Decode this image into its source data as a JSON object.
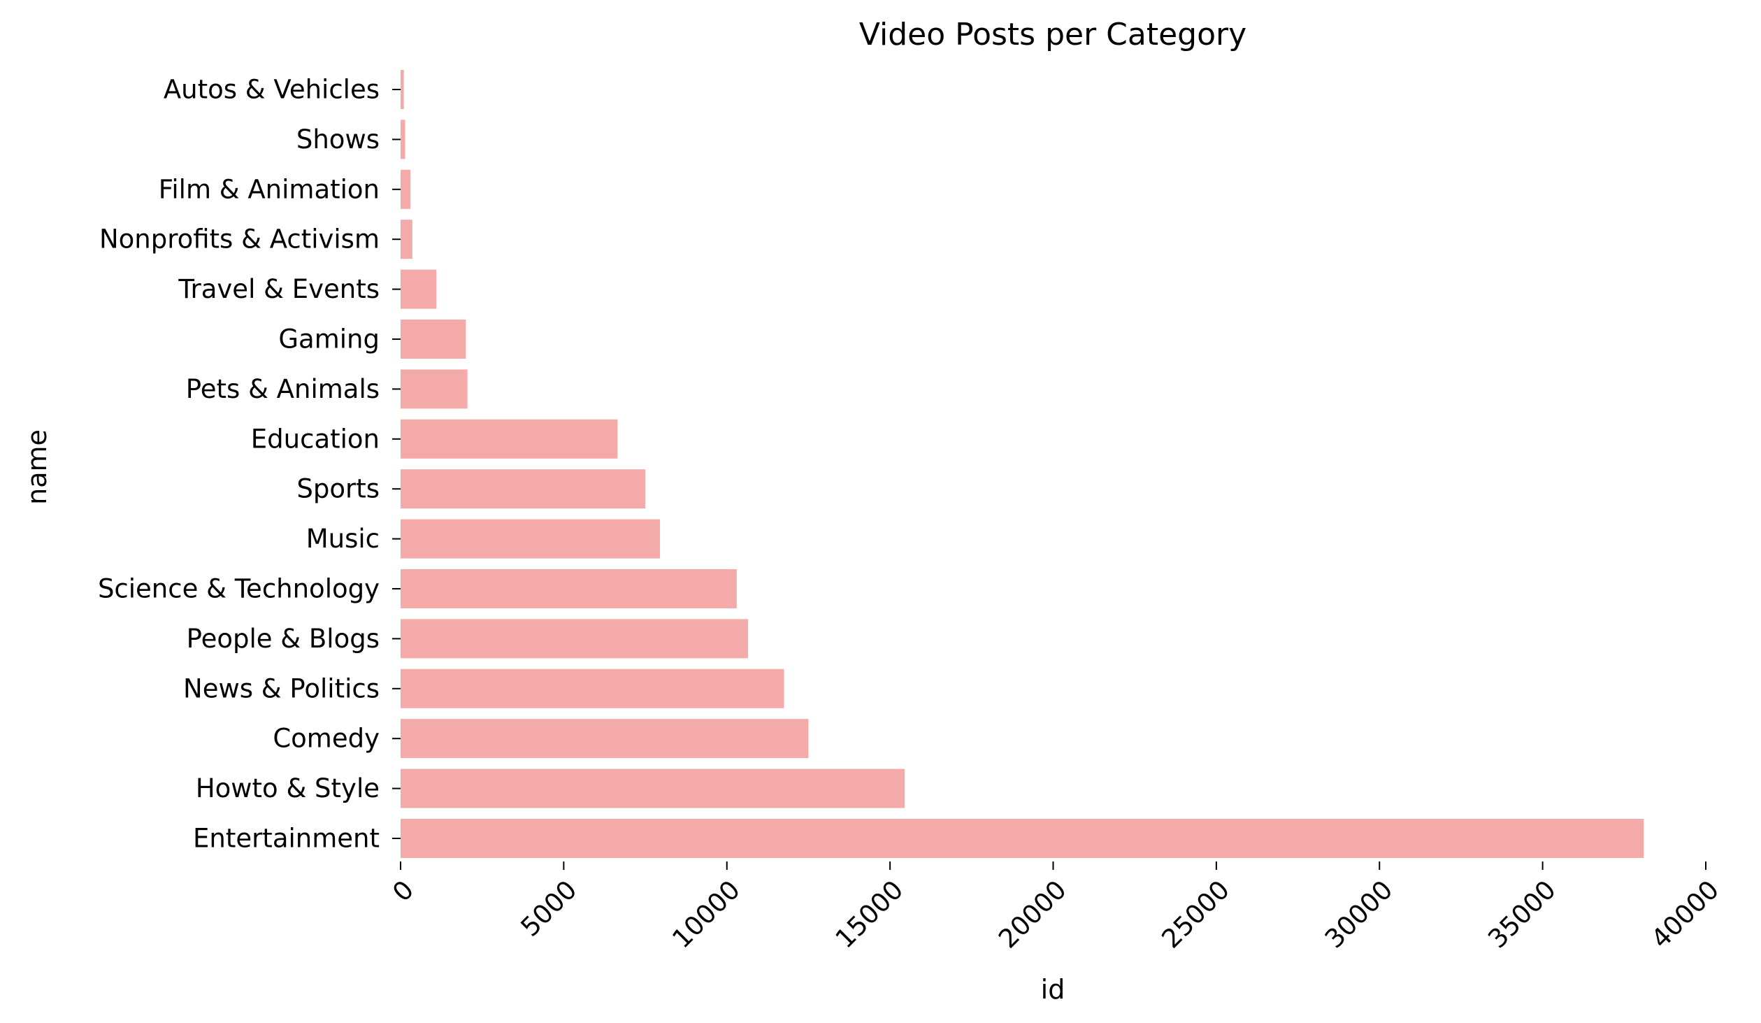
{
  "chart_data": {
    "type": "bar",
    "orientation": "horizontal",
    "title": "Video Posts per Category",
    "xlabel": "id",
    "ylabel": "name",
    "xlim": [
      0,
      40000
    ],
    "xticks": [
      "0",
      "5000",
      "10000",
      "15000",
      "20000",
      "25000",
      "30000",
      "35000",
      "40000"
    ],
    "grid": false,
    "bar_color": "#f4aaa8",
    "categories": [
      "Autos & Vehicles",
      "Shows",
      "Film & Animation",
      "Nonprofits & Activism",
      "Travel & Events",
      "Gaming",
      "Pets & Animals",
      "Education",
      "Sports",
      "Music",
      "Science & Technology",
      "People & Blogs",
      "News & Politics",
      "Comedy",
      "Howto & Style",
      "Entertainment"
    ],
    "values": [
      100,
      140,
      300,
      360,
      1100,
      2000,
      2050,
      6650,
      7500,
      7950,
      10300,
      10650,
      11750,
      12500,
      15450,
      38100
    ]
  }
}
